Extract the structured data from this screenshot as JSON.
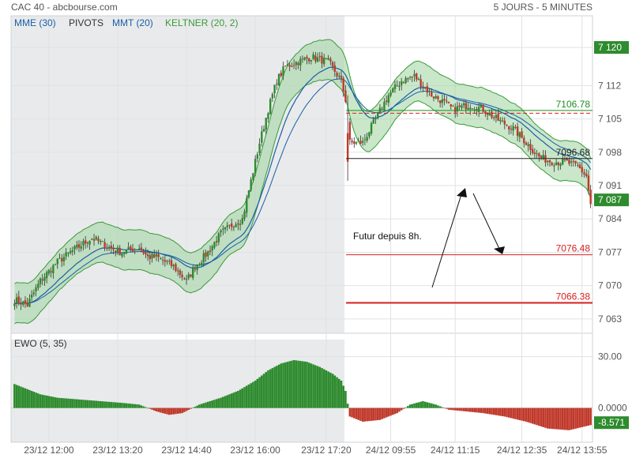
{
  "header": {
    "title": "CAC 40 - abcbourse.com",
    "period": "5 JOURS - 5 MINUTES"
  },
  "legend": {
    "mme": "MME (30)",
    "pivots": "PIVOTS",
    "mmt": "MMT (20)",
    "keltner": "KELTNER (20, 2)"
  },
  "colors": {
    "up": "#2e8b2e",
    "down": "#c0392b",
    "ma": "#1a5fa8",
    "band": "#3a9a3a",
    "band_fill": "#9fd49f",
    "shade": "#e9eaeb",
    "label_green": "#1f8f1f",
    "label_red": "#d62020"
  },
  "chart_data": [
    {
      "type": "candlestick",
      "title": "CAC 40",
      "ylim": [
        7060,
        7123
      ],
      "y_ticks": [
        7063,
        7070,
        7077,
        7084,
        7091,
        7098,
        7105,
        7112,
        7120
      ],
      "y_tick_labels": [
        "7 063",
        "7 070",
        "7 077",
        "7 084",
        "7 091",
        "7 098",
        "7 105",
        "7 112",
        "7 120"
      ],
      "x_tick_labels": [
        "23/12 12:00",
        "23/12 13:20",
        "23/12 14:40",
        "23/12 16:00",
        "23/12 17:20",
        "24/12 09:55",
        "24/12 11:15",
        "24/12 12:35",
        "24/12 13:55"
      ],
      "current_price": {
        "value": 7087,
        "label": "7 087"
      },
      "top_badge": {
        "value": 7120,
        "label": "7 120"
      },
      "pivot_levels": [
        {
          "value": 7106.78,
          "label": "7106.78",
          "color": "green"
        },
        {
          "value": 7096.68,
          "label": "7096.68",
          "color": "black"
        },
        {
          "value": 7076.48,
          "label": "7076.48",
          "color": "red"
        },
        {
          "value": 7066.38,
          "label": "7066.38",
          "color": "red"
        }
      ],
      "dashed_level": 7106.2,
      "annotation": "Futur depuis 8h.",
      "series": [
        {
          "name": "MME (30)"
        },
        {
          "name": "MMT (20)"
        },
        {
          "name": "KELTNER (20, 2)"
        }
      ],
      "close_path": [
        [
          0,
          7067
        ],
        [
          6,
          7066
        ],
        [
          12,
          7071
        ],
        [
          20,
          7075
        ],
        [
          26,
          7077
        ],
        [
          36,
          7080
        ],
        [
          44,
          7078
        ],
        [
          50,
          7077
        ],
        [
          58,
          7078
        ],
        [
          62,
          7076
        ],
        [
          66,
          7076
        ],
        [
          74,
          7074
        ],
        [
          80,
          7071
        ],
        [
          84,
          7074
        ],
        [
          90,
          7077
        ],
        [
          96,
          7081
        ],
        [
          102,
          7083
        ],
        [
          106,
          7084
        ],
        [
          110,
          7092
        ],
        [
          114,
          7100
        ],
        [
          118,
          7107
        ],
        [
          122,
          7113
        ],
        [
          126,
          7116
        ],
        [
          132,
          7117
        ],
        [
          138,
          7118
        ],
        [
          146,
          7117
        ],
        [
          152,
          7113
        ],
        [
          154,
          7109
        ],
        [
          156,
          7100
        ],
        [
          162,
          7100
        ],
        [
          168,
          7105
        ],
        [
          174,
          7110
        ],
        [
          180,
          7113
        ],
        [
          186,
          7114
        ],
        [
          190,
          7112
        ],
        [
          194,
          7110
        ],
        [
          198,
          7109
        ],
        [
          204,
          7107
        ],
        [
          212,
          7108
        ],
        [
          218,
          7107
        ],
        [
          224,
          7105
        ],
        [
          232,
          7103
        ],
        [
          238,
          7100
        ],
        [
          244,
          7097
        ],
        [
          250,
          7096
        ],
        [
          256,
          7096
        ],
        [
          262,
          7095
        ],
        [
          266,
          7093
        ],
        [
          268,
          7087
        ]
      ],
      "session_break_index": 154
    },
    {
      "type": "bar",
      "title": "EWO (5, 35)",
      "y_ticks": [
        30,
        0
      ],
      "y_tick_labels": [
        "30.00",
        "0.0000"
      ],
      "current": {
        "value": -8.571,
        "label": "-8.571"
      },
      "values_path": [
        [
          0,
          14
        ],
        [
          6,
          11
        ],
        [
          12,
          8
        ],
        [
          20,
          6
        ],
        [
          30,
          5
        ],
        [
          40,
          4
        ],
        [
          50,
          3
        ],
        [
          58,
          2
        ],
        [
          66,
          -2
        ],
        [
          72,
          -4
        ],
        [
          78,
          -3
        ],
        [
          86,
          2
        ],
        [
          96,
          6
        ],
        [
          104,
          10
        ],
        [
          112,
          16
        ],
        [
          118,
          22
        ],
        [
          124,
          26
        ],
        [
          130,
          28
        ],
        [
          136,
          27
        ],
        [
          142,
          24
        ],
        [
          148,
          20
        ],
        [
          152,
          16
        ],
        [
          154,
          10
        ],
        [
          156,
          -5
        ],
        [
          162,
          -8
        ],
        [
          170,
          -7
        ],
        [
          178,
          -3
        ],
        [
          184,
          2
        ],
        [
          190,
          4
        ],
        [
          196,
          2
        ],
        [
          202,
          -1
        ],
        [
          210,
          -2
        ],
        [
          218,
          -3
        ],
        [
          228,
          -5
        ],
        [
          238,
          -8
        ],
        [
          248,
          -12
        ],
        [
          258,
          -13
        ],
        [
          268,
          -10
        ]
      ]
    }
  ]
}
